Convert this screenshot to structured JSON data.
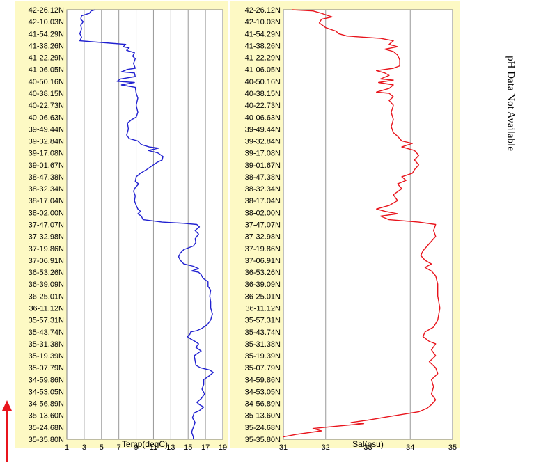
{
  "side_note": "pH Data Not Available",
  "colors": {
    "background": "#fdf9c4",
    "temp_line": "#2020d0",
    "sal_line": "#e8141c",
    "grid": "#999999",
    "arrow": "#e8141c"
  },
  "chart_data": [
    {
      "type": "line",
      "orientation": "vertical-profile",
      "xlabel": "Temp(degC)",
      "xlim": [
        1,
        19
      ],
      "x_ticks": [
        "1",
        "3",
        "5",
        "7",
        "9",
        "11",
        "13",
        "15",
        "17",
        "19"
      ],
      "y_tick_labels": [
        "42-26.12N",
        "42-10.03N",
        "41-54.29N",
        "41-38.26N",
        "41-22.29N",
        "41-06.05N",
        "40-50.16N",
        "40-38.15N",
        "40-22.73N",
        "40-06.63N",
        "39-49.44N",
        "39-32.84N",
        "39-17.08N",
        "39-01.67N",
        "38-47.38N",
        "38-32.34N",
        "38-17.04N",
        "38-02.00N",
        "37-47.07N",
        "37-32.98N",
        "37-19.86N",
        "37-06.91N",
        "36-53.26N",
        "36-39.09N",
        "36-25.01N",
        "36-11.12N",
        "35-57.31N",
        "35-43.74N",
        "35-31.38N",
        "35-19.39N",
        "35-07.79N",
        "34-59.86N",
        "34-53.05N",
        "34-56.89N",
        "35-13.60N",
        "35-24.68N",
        "35-35.80N"
      ],
      "grid": true,
      "series": [
        {
          "values": [
            [
              4.3,
              0.0
            ],
            [
              3.8,
              0.1
            ],
            [
              3.6,
              0.3
            ],
            [
              2.7,
              0.5
            ],
            [
              2.6,
              0.8
            ],
            [
              2.9,
              1.0
            ],
            [
              2.6,
              1.3
            ],
            [
              2.7,
              1.6
            ],
            [
              2.5,
              2.0
            ],
            [
              2.7,
              2.3
            ],
            [
              2.5,
              2.6
            ],
            [
              6.0,
              2.8
            ],
            [
              7.8,
              2.9
            ],
            [
              7.5,
              3.1
            ],
            [
              8.2,
              3.2
            ],
            [
              7.9,
              3.4
            ],
            [
              8.8,
              3.6
            ],
            [
              8.6,
              3.9
            ],
            [
              8.9,
              4.1
            ],
            [
              8.7,
              4.5
            ],
            [
              8.9,
              4.9
            ],
            [
              8.0,
              5.0
            ],
            [
              7.3,
              5.2
            ],
            [
              8.8,
              5.3
            ],
            [
              8.9,
              5.6
            ],
            [
              7.2,
              5.8
            ],
            [
              6.8,
              6.0
            ],
            [
              8.8,
              6.1
            ],
            [
              7.3,
              6.3
            ],
            [
              8.9,
              6.5
            ],
            [
              9.0,
              7.0
            ],
            [
              9.2,
              7.4
            ],
            [
              9.0,
              8.0
            ],
            [
              9.2,
              8.6
            ],
            [
              9.0,
              9.0
            ],
            [
              8.5,
              9.2
            ],
            [
              8.0,
              9.5
            ],
            [
              8.1,
              10.0
            ],
            [
              7.9,
              10.5
            ],
            [
              8.2,
              10.8
            ],
            [
              9.2,
              11.0
            ],
            [
              9.6,
              11.3
            ],
            [
              10.5,
              11.5
            ],
            [
              11.6,
              11.6
            ],
            [
              10.4,
              11.8
            ],
            [
              11.5,
              12.0
            ],
            [
              12.1,
              12.3
            ],
            [
              12.0,
              12.6
            ],
            [
              11.4,
              12.8
            ],
            [
              11.0,
              13.0
            ],
            [
              10.2,
              13.4
            ],
            [
              9.5,
              13.7
            ],
            [
              9.0,
              14.0
            ],
            [
              8.9,
              14.4
            ],
            [
              9.3,
              14.6
            ],
            [
              8.9,
              14.9
            ],
            [
              8.7,
              15.2
            ],
            [
              8.9,
              15.6
            ],
            [
              8.8,
              16.0
            ],
            [
              9.0,
              16.4
            ],
            [
              9.2,
              16.7
            ],
            [
              9.5,
              16.9
            ],
            [
              9.2,
              17.1
            ],
            [
              9.6,
              17.3
            ],
            [
              9.8,
              17.6
            ],
            [
              12.0,
              17.8
            ],
            [
              14.5,
              17.9
            ],
            [
              16.0,
              18.0
            ],
            [
              16.3,
              18.2
            ],
            [
              15.8,
              18.5
            ],
            [
              16.2,
              18.8
            ],
            [
              15.8,
              19.2
            ],
            [
              15.9,
              19.5
            ],
            [
              15.6,
              19.8
            ],
            [
              14.5,
              20.1
            ],
            [
              14.1,
              20.4
            ],
            [
              13.9,
              20.7
            ],
            [
              14.1,
              21.0
            ],
            [
              14.5,
              21.3
            ],
            [
              15.6,
              21.5
            ],
            [
              16.2,
              21.7
            ],
            [
              15.4,
              21.9
            ],
            [
              16.2,
              22.0
            ],
            [
              16.5,
              22.2
            ],
            [
              16.7,
              22.5
            ],
            [
              17.3,
              22.8
            ],
            [
              17.3,
              23.2
            ],
            [
              17.6,
              23.5
            ],
            [
              17.5,
              24.0
            ],
            [
              17.6,
              24.5
            ],
            [
              17.6,
              25.0
            ],
            [
              17.8,
              25.5
            ],
            [
              17.6,
              26.0
            ],
            [
              17.2,
              26.4
            ],
            [
              16.6,
              26.7
            ],
            [
              16.0,
              26.9
            ],
            [
              15.3,
              27.0
            ],
            [
              15.2,
              27.2
            ],
            [
              14.9,
              27.4
            ],
            [
              15.3,
              27.6
            ],
            [
              15.8,
              27.8
            ],
            [
              16.2,
              28.0
            ],
            [
              15.9,
              28.3
            ],
            [
              16.5,
              28.6
            ],
            [
              15.7,
              29.0
            ],
            [
              15.8,
              29.4
            ],
            [
              15.9,
              29.8
            ],
            [
              16.4,
              30.0
            ],
            [
              17.5,
              30.2
            ],
            [
              17.9,
              30.4
            ],
            [
              17.4,
              30.7
            ],
            [
              16.8,
              31.0
            ],
            [
              16.8,
              31.4
            ],
            [
              16.6,
              31.8
            ],
            [
              16.9,
              32.2
            ],
            [
              16.5,
              32.6
            ],
            [
              16.0,
              32.9
            ],
            [
              16.3,
              33.1
            ],
            [
              16.8,
              33.3
            ],
            [
              16.3,
              33.6
            ],
            [
              15.7,
              33.8
            ],
            [
              15.5,
              34.2
            ],
            [
              15.8,
              34.6
            ],
            [
              15.6,
              35.0
            ],
            [
              15.4,
              35.4
            ],
            [
              15.6,
              35.8
            ],
            [
              15.6,
              36.0
            ]
          ]
        }
      ]
    },
    {
      "type": "line",
      "orientation": "vertical-profile",
      "xlabel": "Sal(psu)",
      "xlim": [
        31,
        35
      ],
      "x_ticks": [
        "31",
        "32",
        "33",
        "34",
        "35"
      ],
      "y_tick_labels": [
        "42-26.12N",
        "42-10.03N",
        "41-54.29N",
        "41-38.26N",
        "41-22.29N",
        "41-06.05N",
        "40-50.16N",
        "40-38.15N",
        "40-22.73N",
        "40-06.63N",
        "39-49.44N",
        "39-32.84N",
        "39-17.08N",
        "39-01.67N",
        "38-47.38N",
        "38-32.34N",
        "38-17.04N",
        "38-02.00N",
        "37-47.07N",
        "37-32.98N",
        "37-19.86N",
        "37-06.91N",
        "36-53.26N",
        "36-39.09N",
        "36-25.01N",
        "36-11.12N",
        "35-57.31N",
        "35-43.74N",
        "35-31.38N",
        "35-19.39N",
        "35-07.79N",
        "34-59.86N",
        "34-53.05N",
        "34-56.89N",
        "35-13.60N",
        "35-24.68N",
        "35-35.80N"
      ],
      "grid": true,
      "series": [
        {
          "values": [
            [
              31.2,
              0.0
            ],
            [
              31.7,
              0.1
            ],
            [
              31.9,
              0.3
            ],
            [
              32.15,
              0.6
            ],
            [
              31.9,
              0.8
            ],
            [
              31.85,
              1.1
            ],
            [
              32.0,
              1.5
            ],
            [
              32.25,
              1.8
            ],
            [
              32.3,
              2.0
            ],
            [
              32.5,
              2.2
            ],
            [
              32.9,
              2.3
            ],
            [
              33.3,
              2.4
            ],
            [
              33.6,
              2.6
            ],
            [
              33.5,
              2.9
            ],
            [
              33.7,
              3.1
            ],
            [
              33.4,
              3.3
            ],
            [
              33.6,
              3.5
            ],
            [
              33.7,
              3.8
            ],
            [
              33.75,
              4.2
            ],
            [
              33.75,
              4.7
            ],
            [
              33.6,
              4.9
            ],
            [
              33.2,
              5.1
            ],
            [
              33.4,
              5.3
            ],
            [
              33.5,
              5.5
            ],
            [
              33.3,
              5.8
            ],
            [
              33.6,
              5.9
            ],
            [
              33.25,
              6.1
            ],
            [
              33.6,
              6.3
            ],
            [
              33.5,
              6.6
            ],
            [
              33.2,
              6.9
            ],
            [
              33.5,
              7.0
            ],
            [
              33.6,
              7.3
            ],
            [
              33.5,
              7.6
            ],
            [
              33.6,
              8.0
            ],
            [
              33.55,
              8.6
            ],
            [
              33.6,
              9.2
            ],
            [
              33.55,
              9.8
            ],
            [
              33.6,
              10.3
            ],
            [
              33.7,
              10.6
            ],
            [
              33.8,
              11.0
            ],
            [
              34.05,
              11.2
            ],
            [
              33.8,
              11.5
            ],
            [
              34.1,
              11.8
            ],
            [
              34.2,
              12.2
            ],
            [
              34.1,
              12.6
            ],
            [
              34.2,
              13.0
            ],
            [
              34.1,
              13.4
            ],
            [
              34.05,
              13.7
            ],
            [
              33.8,
              14.0
            ],
            [
              33.9,
              14.3
            ],
            [
              33.7,
              14.6
            ],
            [
              33.8,
              15.0
            ],
            [
              33.6,
              15.5
            ],
            [
              33.7,
              16.0
            ],
            [
              33.5,
              16.4
            ],
            [
              33.2,
              16.7
            ],
            [
              33.4,
              16.9
            ],
            [
              33.7,
              17.1
            ],
            [
              33.3,
              17.3
            ],
            [
              33.5,
              17.6
            ],
            [
              34.2,
              17.8
            ],
            [
              34.6,
              18.0
            ],
            [
              34.55,
              18.5
            ],
            [
              34.6,
              19.0
            ],
            [
              34.45,
              19.6
            ],
            [
              34.3,
              20.2
            ],
            [
              34.25,
              20.6
            ],
            [
              34.35,
              21.0
            ],
            [
              34.5,
              21.3
            ],
            [
              34.35,
              21.6
            ],
            [
              34.5,
              21.9
            ],
            [
              34.6,
              22.3
            ],
            [
              34.65,
              23.0
            ],
            [
              34.65,
              24.0
            ],
            [
              34.7,
              25.0
            ],
            [
              34.65,
              26.0
            ],
            [
              34.55,
              26.6
            ],
            [
              34.35,
              27.0
            ],
            [
              34.3,
              27.4
            ],
            [
              34.45,
              27.8
            ],
            [
              34.6,
              28.0
            ],
            [
              34.5,
              28.5
            ],
            [
              34.6,
              29.0
            ],
            [
              34.45,
              29.5
            ],
            [
              34.6,
              30.0
            ],
            [
              34.65,
              30.5
            ],
            [
              34.5,
              31.0
            ],
            [
              34.55,
              31.6
            ],
            [
              34.5,
              32.2
            ],
            [
              34.6,
              32.7
            ],
            [
              34.5,
              33.1
            ],
            [
              34.4,
              33.4
            ],
            [
              34.2,
              33.7
            ],
            [
              33.5,
              34.1
            ],
            [
              33.0,
              34.4
            ],
            [
              32.6,
              34.6
            ],
            [
              32.9,
              34.7
            ],
            [
              32.3,
              34.9
            ],
            [
              31.7,
              35.1
            ],
            [
              31.9,
              35.3
            ],
            [
              31.3,
              35.6
            ],
            [
              31.0,
              35.8
            ]
          ]
        }
      ]
    }
  ]
}
